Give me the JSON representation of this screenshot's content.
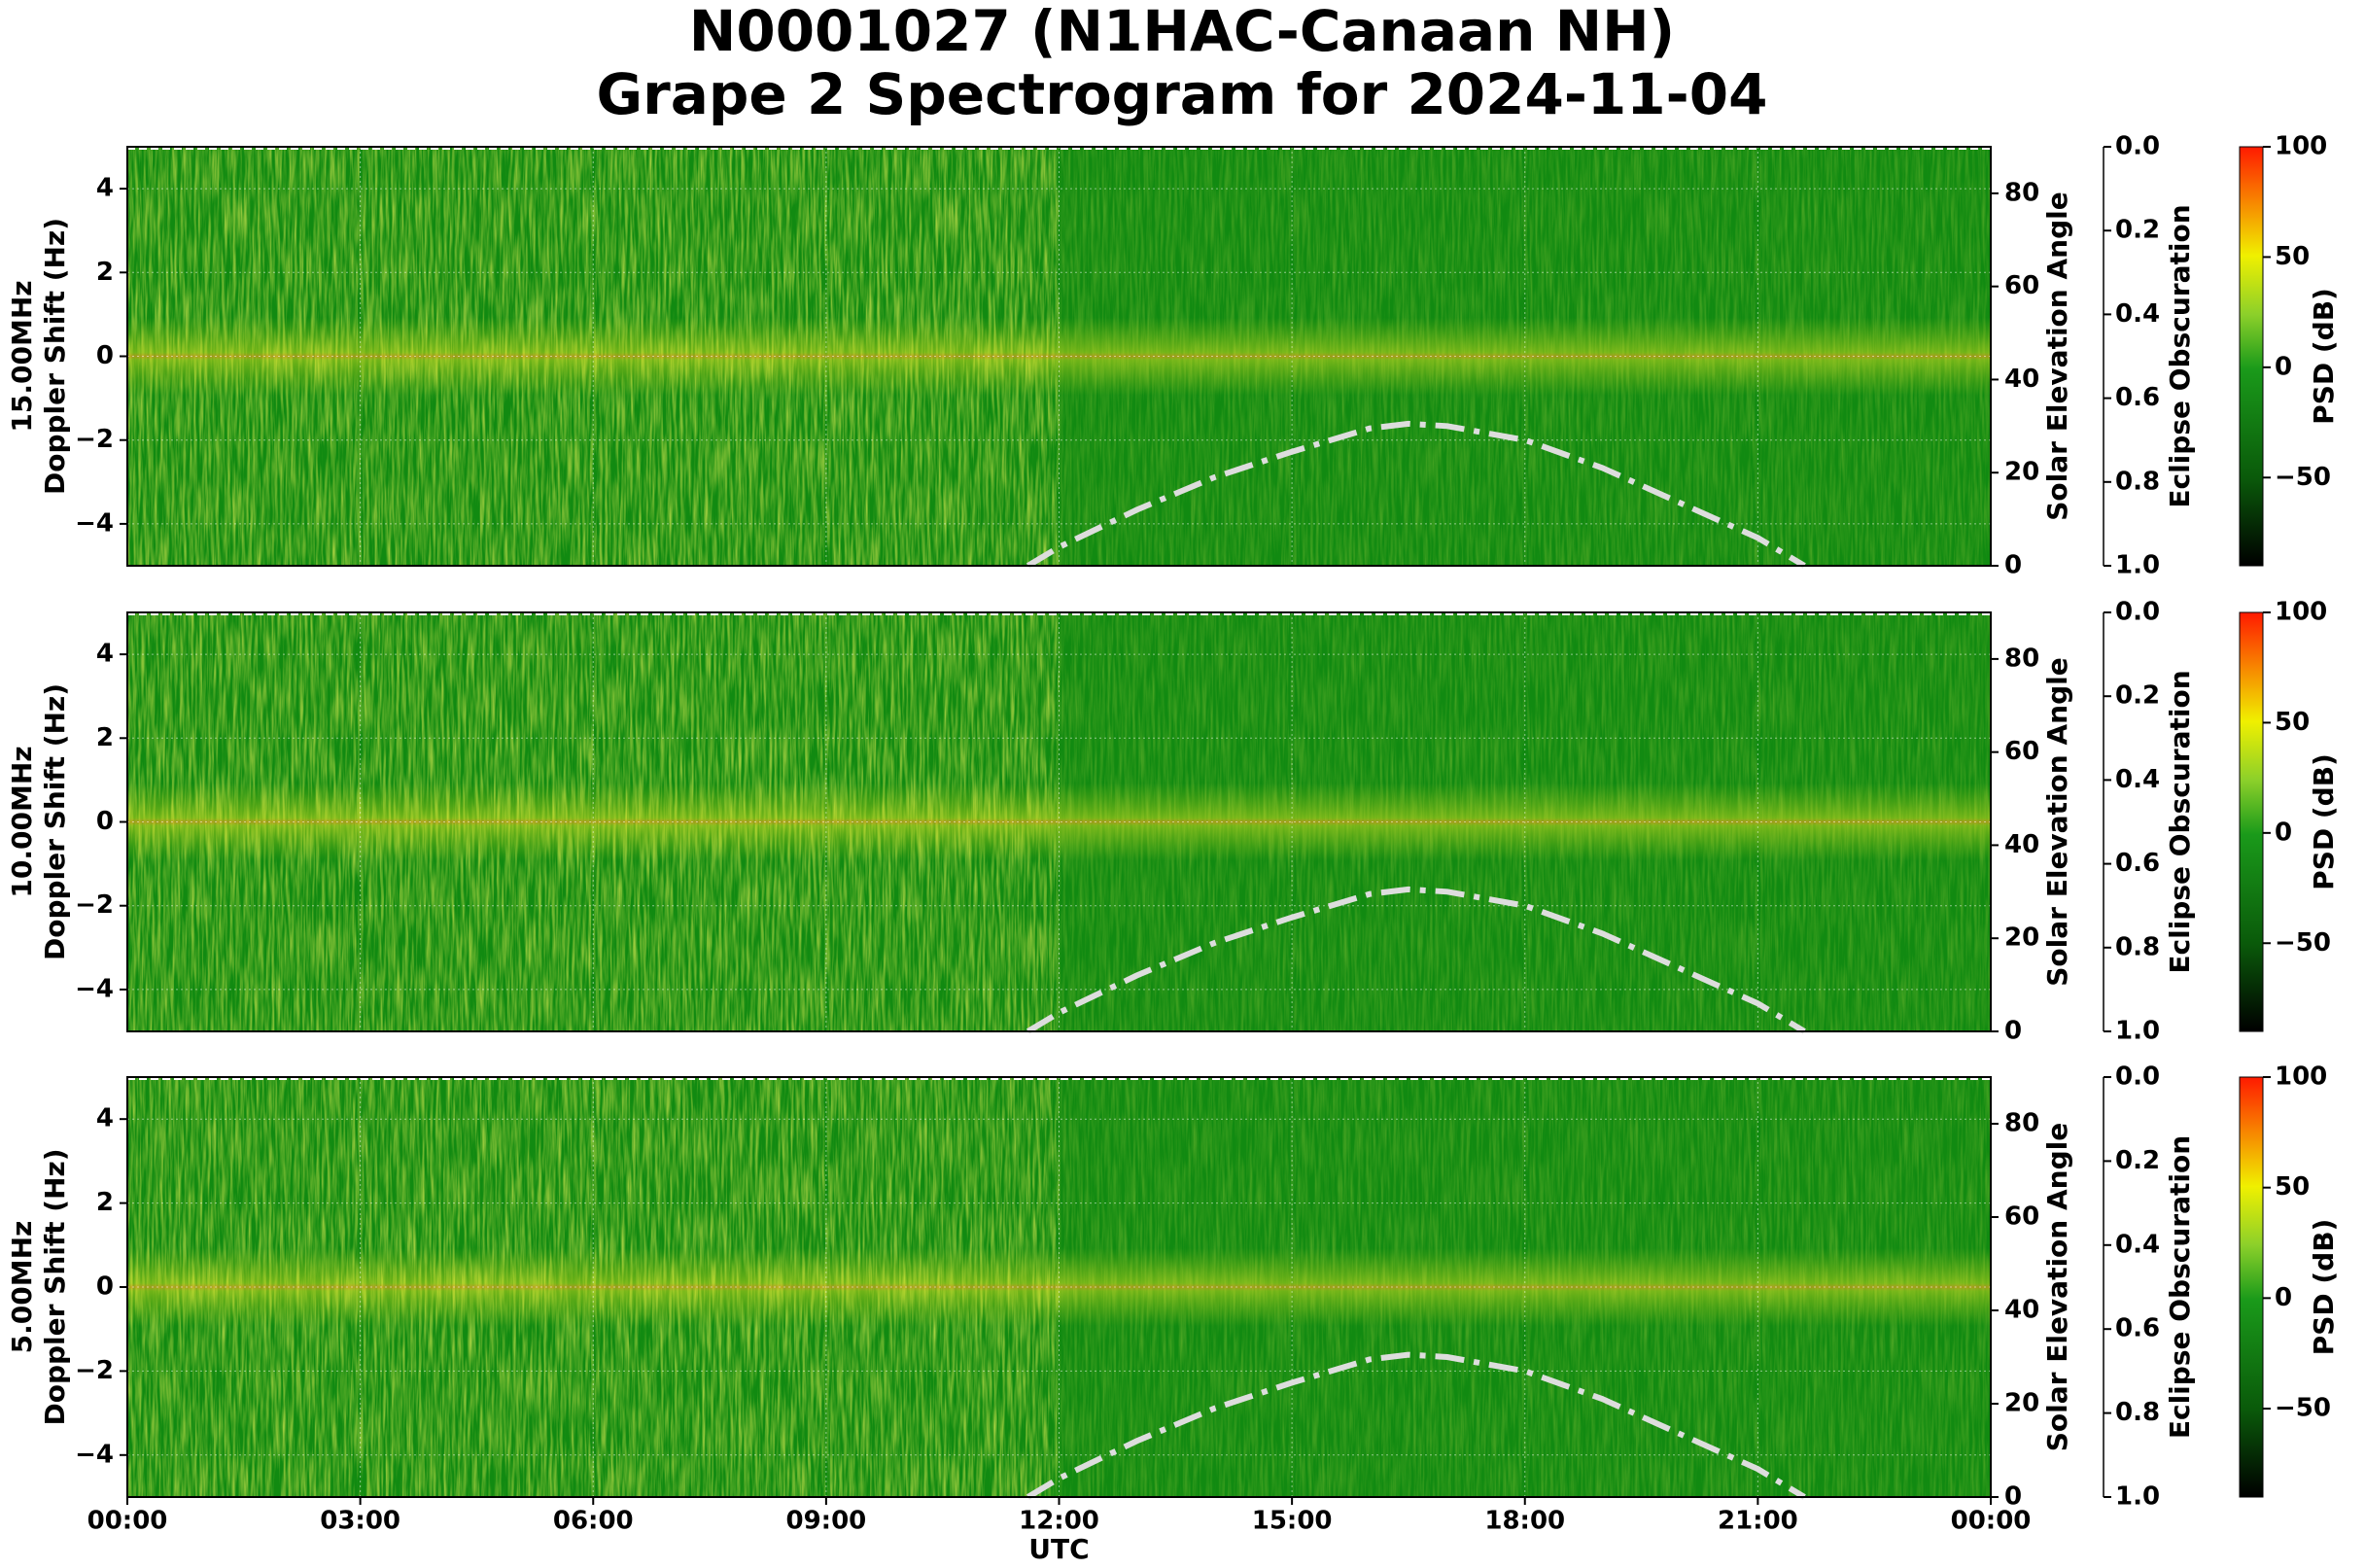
{
  "figure_title": [
    "N0001027 (N1HAC-Canaan NH)",
    "Grape 2 Spectrogram for 2024-11-04"
  ],
  "x_axis": {
    "label": "UTC",
    "xlim": [
      0,
      24
    ],
    "xticks": [
      {
        "value": 0,
        "label": "00:00"
      },
      {
        "value": 3,
        "label": "03:00"
      },
      {
        "value": 6,
        "label": "06:00"
      },
      {
        "value": 9,
        "label": "09:00"
      },
      {
        "value": 12,
        "label": "12:00"
      },
      {
        "value": 15,
        "label": "15:00"
      },
      {
        "value": 18,
        "label": "18:00"
      },
      {
        "value": 21,
        "label": "21:00"
      },
      {
        "value": 24,
        "label": "00:00"
      }
    ]
  },
  "solar_elevation": {
    "color": "#dddddd",
    "x": [
      11.6,
      12,
      13,
      14,
      15,
      16,
      16.5,
      17,
      18,
      19,
      20,
      21,
      21.6
    ],
    "values": [
      0,
      4,
      12,
      19,
      24.5,
      29.5,
      30.5,
      30,
      27,
      21,
      13.5,
      6,
      0
    ]
  },
  "chart_data": [
    {
      "type": "spectrogram",
      "ylabel": [
        "15.00MHz",
        "Doppler Shift (Hz)"
      ],
      "ylim": [
        -5,
        5
      ],
      "yticks": [
        {
          "value": -4,
          "label": "−4"
        },
        {
          "value": -2,
          "label": "−2"
        },
        0,
        2,
        4
      ],
      "y2label": "Solar Elevation Angle",
      "y2lim": [
        0,
        90
      ],
      "y2ticks": [
        0,
        20,
        40,
        60,
        80
      ],
      "y3label": "Eclipse Obscuration",
      "y3lim": [
        1,
        0
      ],
      "y3ticks": [
        {
          "value": 0,
          "label": "0.0"
        },
        0.2,
        0.4,
        0.6,
        0.8,
        {
          "value": 1,
          "label": "1.0"
        }
      ],
      "colorbar": {
        "label": "PSD (dB)",
        "lim": [
          -90,
          100
        ],
        "ticks": [
          {
            "value": -50,
            "label": "−50"
          },
          0,
          50,
          100
        ]
      },
      "grid": true
    },
    {
      "type": "spectrogram",
      "ylabel": [
        "10.00MHz",
        "Doppler Shift (Hz)"
      ],
      "ylim": [
        -5,
        5
      ],
      "yticks": [
        {
          "value": -4,
          "label": "−4"
        },
        {
          "value": -2,
          "label": "−2"
        },
        0,
        2,
        4
      ],
      "y2label": "Solar Elevation Angle",
      "y2lim": [
        0,
        90
      ],
      "y2ticks": [
        0,
        20,
        40,
        60,
        80
      ],
      "y3label": "Eclipse Obscuration",
      "y3lim": [
        1,
        0
      ],
      "y3ticks": [
        {
          "value": 0,
          "label": "0.0"
        },
        0.2,
        0.4,
        0.6,
        0.8,
        {
          "value": 1,
          "label": "1.0"
        }
      ],
      "colorbar": {
        "label": "PSD (dB)",
        "lim": [
          -90,
          100
        ],
        "ticks": [
          {
            "value": -50,
            "label": "−50"
          },
          0,
          50,
          100
        ]
      },
      "grid": true
    },
    {
      "type": "spectrogram",
      "ylabel": [
        "5.00MHz",
        "Doppler Shift (Hz)"
      ],
      "ylim": [
        -5,
        5
      ],
      "yticks": [
        {
          "value": -4,
          "label": "−4"
        },
        {
          "value": -2,
          "label": "−2"
        },
        0,
        2,
        4
      ],
      "y2label": "Solar Elevation Angle",
      "y2lim": [
        0,
        90
      ],
      "y2ticks": [
        0,
        20,
        40,
        60,
        80
      ],
      "y3label": "Eclipse Obscuration",
      "y3lim": [
        1,
        0
      ],
      "y3ticks": [
        {
          "value": 0,
          "label": "0.0"
        },
        0.2,
        0.4,
        0.6,
        0.8,
        {
          "value": 1,
          "label": "1.0"
        }
      ],
      "colorbar": {
        "label": "PSD (dB)",
        "lim": [
          -90,
          100
        ],
        "ticks": [
          {
            "value": -50,
            "label": "−50"
          },
          0,
          50,
          100
        ]
      },
      "grid": true
    }
  ]
}
